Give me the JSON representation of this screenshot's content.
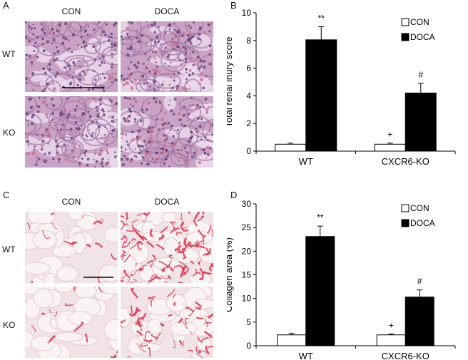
{
  "panels": {
    "A": {
      "letter": "A",
      "col_headers": [
        "CON",
        "DOCA"
      ],
      "row_labels": [
        "WT",
        "KO"
      ],
      "stain_colors": {
        "base": "#c9a2c4",
        "nuclei": "#5b3b78",
        "accent": "#d6607a"
      }
    },
    "B": {
      "letter": "B"
    },
    "C": {
      "letter": "C",
      "col_headers": [
        "CON",
        "DOCA"
      ],
      "row_labels": [
        "WT",
        "KO"
      ],
      "stain_colors": {
        "base": "#f1e4e6",
        "fiber": "#d9364c"
      }
    },
    "D": {
      "letter": "D"
    }
  },
  "chart_data": [
    {
      "panel": "B",
      "type": "bar",
      "categories": [
        "WT",
        "CXCR6-KO"
      ],
      "series": [
        {
          "name": "CON",
          "values": [
            0.5,
            0.5
          ],
          "errors": [
            0.08,
            0.08
          ],
          "color": "#ffffff"
        },
        {
          "name": "DOCA",
          "values": [
            8.05,
            4.2
          ],
          "errors": [
            0.95,
            0.7
          ],
          "color": "#000000"
        }
      ],
      "annotations": [
        {
          "category": 0,
          "series": 1,
          "text": "**"
        },
        {
          "category": 1,
          "series": 1,
          "text": "#"
        },
        {
          "category": 1,
          "series": 0,
          "text": "+"
        }
      ],
      "xlabel": "",
      "ylabel": "Total renal inury score",
      "ylim": [
        0,
        10
      ],
      "yticks": [
        0,
        2,
        4,
        6,
        8,
        10
      ],
      "legend": "top-right",
      "grid": false
    },
    {
      "panel": "D",
      "type": "bar",
      "categories": [
        "WT",
        "CXCR6-KO"
      ],
      "series": [
        {
          "name": "CON",
          "values": [
            2.3,
            2.3
          ],
          "errors": [
            0.3,
            0.2
          ],
          "color": "#ffffff"
        },
        {
          "name": "DOCA",
          "values": [
            23.1,
            10.3
          ],
          "errors": [
            2.2,
            1.5
          ],
          "color": "#000000"
        }
      ],
      "annotations": [
        {
          "category": 0,
          "series": 1,
          "text": "**"
        },
        {
          "category": 1,
          "series": 1,
          "text": "#"
        },
        {
          "category": 1,
          "series": 0,
          "text": "+"
        }
      ],
      "xlabel": "",
      "ylabel": "Collagen area (%)",
      "ylim": [
        0,
        30
      ],
      "yticks": [
        0,
        5,
        10,
        15,
        20,
        25,
        30
      ],
      "legend": "top-right",
      "grid": false
    }
  ]
}
